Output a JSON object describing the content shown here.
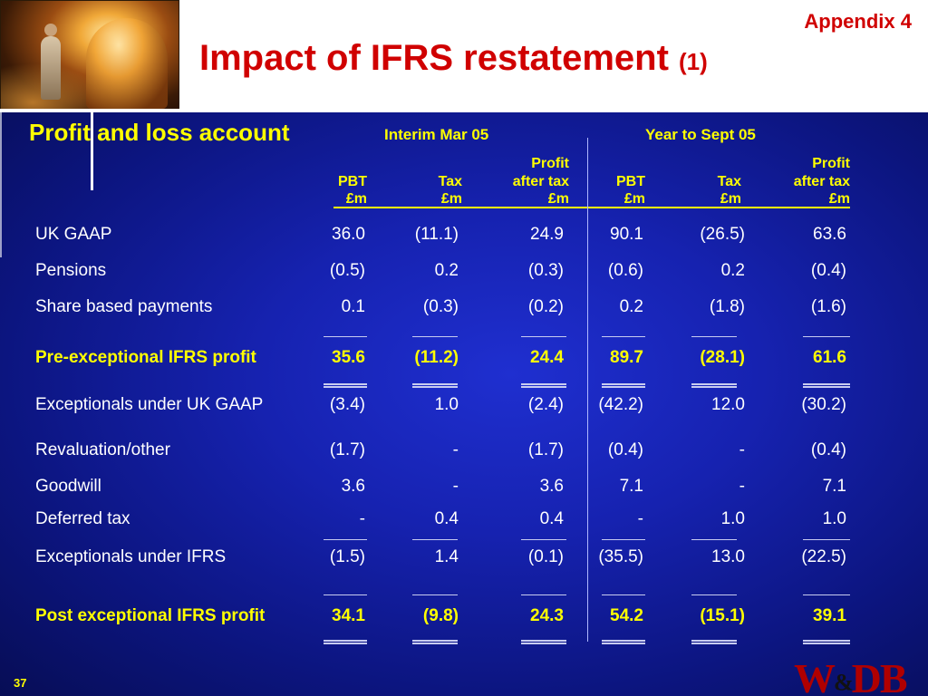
{
  "header": {
    "appendix": "Appendix 4",
    "title": "Impact of IFRS restatement",
    "title_suffix": "(1)"
  },
  "section_heading": "Profit and loss account",
  "periods": [
    "Interim Mar 05",
    "Year to Sept 05"
  ],
  "columns": [
    {
      "line1": "",
      "line2": "PBT",
      "line3": "£m"
    },
    {
      "line1": "",
      "line2": "Tax",
      "line3": "£m"
    },
    {
      "line1": "Profit",
      "line2": "after tax",
      "line3": "£m"
    },
    {
      "line1": "",
      "line2": "PBT",
      "line3": "£m"
    },
    {
      "line1": "",
      "line2": "Tax",
      "line3": "£m"
    },
    {
      "line1": "Profit",
      "line2": "after tax",
      "line3": "£m"
    }
  ],
  "rows": [
    {
      "label": "UK GAAP",
      "values": [
        "36.0",
        "(11.1)",
        "24.9",
        "90.1",
        "(26.5)",
        "63.6"
      ]
    },
    {
      "label": "Pensions",
      "values": [
        "(0.5)",
        "0.2",
        "(0.3)",
        "(0.6)",
        "0.2",
        "(0.4)"
      ]
    },
    {
      "label": "Share based payments",
      "values": [
        "0.1",
        "(0.3)",
        "(0.2)",
        "0.2",
        "(1.8)",
        "(1.6)"
      ]
    },
    {
      "label": "Pre-exceptional IFRS profit",
      "values": [
        "35.6",
        "(11.2)",
        "24.4",
        "89.7",
        "(28.1)",
        "61.6"
      ]
    },
    {
      "label": "Exceptionals under UK GAAP",
      "values": [
        "(3.4)",
        "1.0",
        "(2.4)",
        "(42.2)",
        "12.0",
        "(30.2)"
      ]
    },
    {
      "label": "Revaluation/other",
      "values": [
        "(1.7)",
        "-",
        "(1.7)",
        "(0.4)",
        "-",
        "(0.4)"
      ]
    },
    {
      "label": "Goodwill",
      "values": [
        "3.6",
        "-",
        "3.6",
        "7.1",
        "-",
        "7.1"
      ]
    },
    {
      "label": "Deferred tax",
      "values": [
        "-",
        "0.4",
        "0.4",
        "-",
        "1.0",
        "1.0"
      ]
    },
    {
      "label": "Exceptionals under IFRS",
      "values": [
        "(1.5)",
        "1.4",
        "(0.1)",
        "(35.5)",
        "13.0",
        "(22.5)"
      ]
    },
    {
      "label": "Post exceptional IFRS profit",
      "values": [
        "34.1",
        "(9.8)",
        "24.3",
        "54.2",
        "(15.1)",
        "39.1"
      ]
    }
  ],
  "footer": {
    "page_number": "37",
    "logo_left": "W",
    "logo_amp": "&",
    "logo_right": "DB"
  },
  "colors": {
    "title_red": "#d00000",
    "highlight_yellow": "#ffff00",
    "background_blue": "#1622b0"
  }
}
